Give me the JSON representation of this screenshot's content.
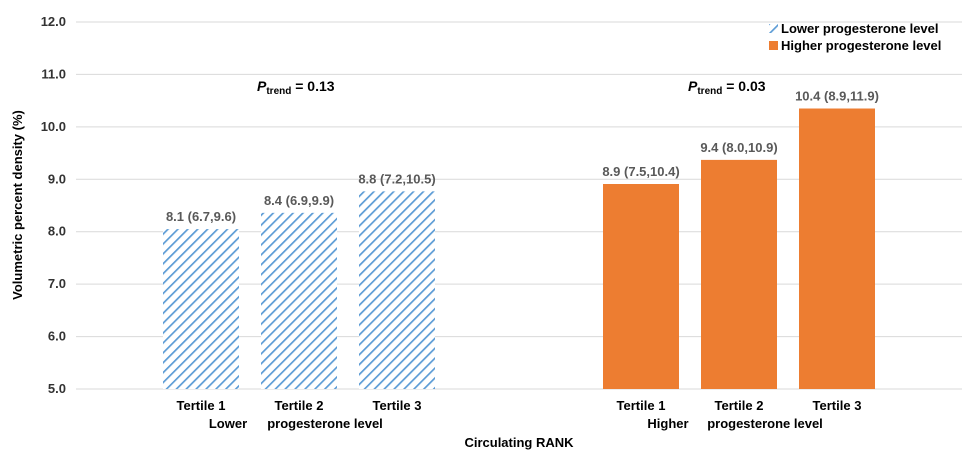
{
  "chart_data": {
    "type": "bar",
    "xlabel": "Circulating RANK",
    "ylabel": "Volumetric percent density (%)",
    "ylim": [
      5.0,
      12.0
    ],
    "yticks": [
      "5.0",
      "6.0",
      "7.0",
      "8.0",
      "9.0",
      "10.0",
      "11.0",
      "12.0"
    ],
    "grid": true,
    "legend_position": "top-right",
    "groups": [
      {
        "name": "Lower progesterone level",
        "legend_label": "Lower  progesterone level",
        "group_label_left": "Lower",
        "group_label_right": "progesterone level",
        "pattern": "hatched",
        "color": "#5b9bd5",
        "p_symbol": "P",
        "p_sub": "trend",
        "p_value": " = 0.13",
        "bars": [
          {
            "category": "Tertile 1",
            "value": 8.05,
            "label": "8.1 (6.7,9.6)"
          },
          {
            "category": "Tertile 2",
            "value": 8.36,
            "label": "8.4 (6.9,9.9)"
          },
          {
            "category": "Tertile 3",
            "value": 8.77,
            "label": "8.8 (7.2,10.5)"
          }
        ]
      },
      {
        "name": "Higher progesterone level",
        "legend_label": "Higher progesterone level",
        "group_label_left": "Higher",
        "group_label_right": "progesterone level",
        "pattern": "solid",
        "color": "#ed7d31",
        "p_symbol": "P",
        "p_sub": "trend",
        "p_value": " = 0.03",
        "bars": [
          {
            "category": "Tertile 1",
            "value": 8.91,
            "label": "8.9 (7.5,10.4)"
          },
          {
            "category": "Tertile 2",
            "value": 9.37,
            "label": "9.4 (8.0,10.9)"
          },
          {
            "category": "Tertile 3",
            "value": 10.35,
            "label": "10.4 (8.9,11.9)"
          }
        ]
      }
    ]
  }
}
